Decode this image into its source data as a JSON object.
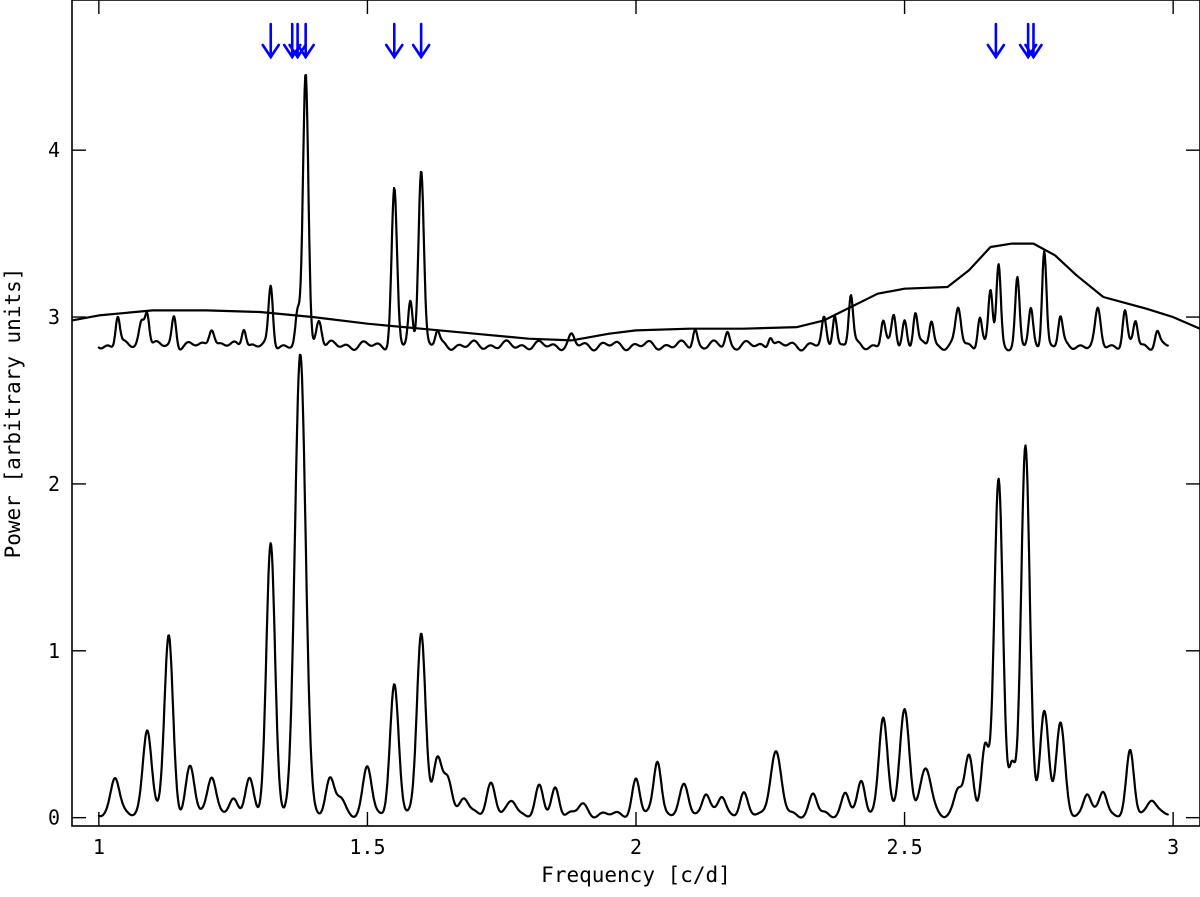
{
  "chart_data": {
    "type": "line",
    "xlabel": "Frequency [c/d]",
    "ylabel": "Power [arbitrary units]",
    "xlim": [
      0.95,
      3.05
    ],
    "ylim": [
      -0.05,
      4.9
    ],
    "xticks": [
      1,
      1.5,
      2,
      2.5,
      3
    ],
    "xtick_labels": [
      "1",
      "1.5",
      "2",
      "2.5",
      "3"
    ],
    "yticks": [
      0,
      1,
      2,
      3,
      4
    ],
    "ytick_labels": [
      "0",
      "1",
      "2",
      "3",
      "4"
    ],
    "grid": false,
    "marker_color": "#0000ff",
    "marker_frequencies": [
      1.32,
      1.36,
      1.37,
      1.385,
      1.55,
      1.6,
      2.67,
      2.73,
      2.74
    ],
    "series": [
      {
        "role": "periodogram-lower",
        "baseline": 0.0,
        "noise_level": 0.02,
        "peaks": [
          [
            1.03,
            0.23,
            0.008
          ],
          [
            1.09,
            0.52,
            0.008
          ],
          [
            1.13,
            1.07,
            0.008
          ],
          [
            1.17,
            0.28,
            0.008
          ],
          [
            1.21,
            0.24,
            0.008
          ],
          [
            1.25,
            0.08,
            0.008
          ],
          [
            1.28,
            0.22,
            0.008
          ],
          [
            1.32,
            1.62,
            0.008
          ],
          [
            1.375,
            2.74,
            0.01
          ],
          [
            1.43,
            0.2,
            0.008
          ],
          [
            1.45,
            0.1,
            0.008
          ],
          [
            1.5,
            0.28,
            0.008
          ],
          [
            1.55,
            0.77,
            0.008
          ],
          [
            1.6,
            1.1,
            0.008
          ],
          [
            1.63,
            0.33,
            0.008
          ],
          [
            1.65,
            0.22,
            0.008
          ],
          [
            1.68,
            0.1,
            0.008
          ],
          [
            1.73,
            0.19,
            0.008
          ],
          [
            1.77,
            0.08,
            0.008
          ],
          [
            1.82,
            0.16,
            0.007
          ],
          [
            1.85,
            0.16,
            0.007
          ],
          [
            1.9,
            0.06,
            0.008
          ],
          [
            2.0,
            0.21,
            0.007
          ],
          [
            2.04,
            0.33,
            0.007
          ],
          [
            2.09,
            0.17,
            0.008
          ],
          [
            2.13,
            0.13,
            0.007
          ],
          [
            2.16,
            0.11,
            0.007
          ],
          [
            2.2,
            0.12,
            0.007
          ],
          [
            2.26,
            0.37,
            0.01
          ],
          [
            2.33,
            0.12,
            0.007
          ],
          [
            2.39,
            0.13,
            0.007
          ],
          [
            2.42,
            0.2,
            0.007
          ],
          [
            2.46,
            0.58,
            0.008
          ],
          [
            2.5,
            0.63,
            0.009
          ],
          [
            2.54,
            0.27,
            0.01
          ],
          [
            2.6,
            0.14,
            0.007
          ],
          [
            2.62,
            0.35,
            0.008
          ],
          [
            2.65,
            0.4,
            0.007
          ],
          [
            2.675,
            2.0,
            0.008
          ],
          [
            2.7,
            0.3,
            0.006
          ],
          [
            2.725,
            2.21,
            0.008
          ],
          [
            2.76,
            0.63,
            0.008
          ],
          [
            2.79,
            0.54,
            0.008
          ],
          [
            2.84,
            0.13,
            0.007
          ],
          [
            2.87,
            0.14,
            0.007
          ],
          [
            2.92,
            0.37,
            0.007
          ],
          [
            2.96,
            0.1,
            0.008
          ]
        ]
      },
      {
        "role": "periodogram-upper",
        "baseline": 2.8,
        "noise_level": 0.03,
        "peaks": [
          [
            1.035,
            0.18,
            0.004
          ],
          [
            1.08,
            0.15,
            0.005
          ],
          [
            1.09,
            0.2,
            0.004
          ],
          [
            1.14,
            0.18,
            0.004
          ],
          [
            1.21,
            0.12,
            0.005
          ],
          [
            1.27,
            0.12,
            0.004
          ],
          [
            1.32,
            0.35,
            0.004
          ],
          [
            1.37,
            0.18,
            0.004
          ],
          [
            1.385,
            1.64,
            0.005
          ],
          [
            1.41,
            0.16,
            0.005
          ],
          [
            1.55,
            0.93,
            0.005
          ],
          [
            1.58,
            0.25,
            0.004
          ],
          [
            1.6,
            1.07,
            0.005
          ],
          [
            1.63,
            0.08,
            0.004
          ],
          [
            1.88,
            0.05,
            0.005
          ],
          [
            2.11,
            0.1,
            0.004
          ],
          [
            2.17,
            0.08,
            0.004
          ],
          [
            2.25,
            0.07,
            0.004
          ],
          [
            2.35,
            0.15,
            0.004
          ],
          [
            2.37,
            0.2,
            0.004
          ],
          [
            2.4,
            0.3,
            0.004
          ],
          [
            2.46,
            0.15,
            0.004
          ],
          [
            2.48,
            0.18,
            0.004
          ],
          [
            2.5,
            0.15,
            0.004
          ],
          [
            2.52,
            0.2,
            0.004
          ],
          [
            2.55,
            0.15,
            0.004
          ],
          [
            2.6,
            0.22,
            0.005
          ],
          [
            2.64,
            0.18,
            0.004
          ],
          [
            2.66,
            0.33,
            0.004
          ],
          [
            2.675,
            0.47,
            0.004
          ],
          [
            2.71,
            0.4,
            0.004
          ],
          [
            2.735,
            0.2,
            0.004
          ],
          [
            2.76,
            0.58,
            0.004
          ],
          [
            2.79,
            0.16,
            0.004
          ],
          [
            2.86,
            0.2,
            0.005
          ],
          [
            2.91,
            0.2,
            0.004
          ],
          [
            2.93,
            0.15,
            0.004
          ],
          [
            2.97,
            0.08,
            0.004
          ]
        ]
      },
      {
        "role": "significance-envelope",
        "x": [
          0.95,
          1.0,
          1.1,
          1.2,
          1.3,
          1.4,
          1.5,
          1.6,
          1.7,
          1.8,
          1.88,
          1.95,
          2.0,
          2.1,
          2.2,
          2.3,
          2.35,
          2.4,
          2.45,
          2.5,
          2.58,
          2.62,
          2.66,
          2.7,
          2.74,
          2.78,
          2.82,
          2.87,
          2.95,
          3.0,
          3.05
        ],
        "y": [
          2.98,
          3.01,
          3.04,
          3.04,
          3.03,
          3.0,
          2.96,
          2.93,
          2.9,
          2.87,
          2.86,
          2.9,
          2.92,
          2.93,
          2.93,
          2.94,
          2.98,
          3.06,
          3.14,
          3.17,
          3.18,
          3.28,
          3.42,
          3.44,
          3.44,
          3.37,
          3.25,
          3.12,
          3.05,
          3.0,
          2.93
        ]
      }
    ]
  }
}
